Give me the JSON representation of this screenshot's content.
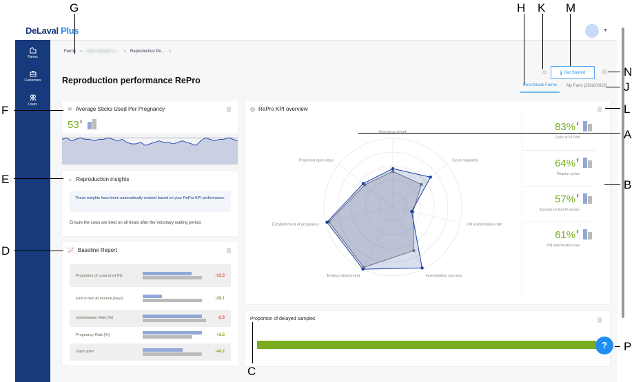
{
  "header": {
    "logo_main": "DeLaval",
    "logo_accent": "Plus"
  },
  "sidebar": {
    "items": [
      {
        "label": "Farms",
        "icon": "farm-icon"
      },
      {
        "label": "Customers",
        "icon": "briefcase-icon"
      },
      {
        "label": "Users",
        "icon": "users-icon"
      }
    ]
  },
  "breadcrumb": [
    "Farms",
    "New Sandahl G...",
    "Reproduction Pe..."
  ],
  "page": {
    "title": "Reproduction performance RePro"
  },
  "toolbar": {
    "get_started": "Get Started",
    "tabs": [
      "Benchmark Farms",
      "My Farm [25/10/2022]"
    ],
    "active_tab": 0
  },
  "sticks": {
    "title": "Average Sticks Used Per Pregnancy",
    "value": "53",
    "trend": "down",
    "sparkline": [
      52,
      53,
      51,
      52,
      53,
      52,
      52,
      51,
      52,
      52,
      53,
      52,
      51,
      52,
      50,
      49,
      49,
      50,
      48,
      49,
      50,
      51,
      50,
      50,
      49,
      50,
      51,
      50,
      49,
      48,
      51,
      53,
      52,
      51,
      52,
      52,
      53,
      52,
      51
    ]
  },
  "insights": {
    "title": "Reproduction insights",
    "info": "These insights have been automatically created based on your RePro KPI performance.",
    "tip": "Ensure the cows are bred on all heats after the Voluntary waiting period."
  },
  "baseline": {
    "title": "Baseline Report",
    "rows": [
      {
        "label": "Proportion of cows bred [%]",
        "farm": 0.71,
        "bench": 0.86,
        "delta": "-13.5",
        "color": "#e8453c"
      },
      {
        "label": "First to last AI interval [days]",
        "farm": 0.28,
        "bench": 0.86,
        "delta": "-28.1",
        "color": "#79ad1f"
      },
      {
        "label": "Insemination Rate [%]",
        "farm": 0.86,
        "bench": 0.92,
        "delta": "-2.6",
        "color": "#e8453c"
      },
      {
        "label": "Pregnancy Rate [%]",
        "farm": 0.86,
        "bench": 0.72,
        "delta": "+2.8",
        "color": "#79ad1f"
      },
      {
        "label": "Days open",
        "farm": 0.58,
        "bench": 0.86,
        "delta": "-44.2",
        "color": "#79ad1f"
      }
    ]
  },
  "kpi_overview": {
    "title": "RePro KPI overview",
    "tiles": [
      {
        "value": "83%",
        "trend": "down",
        "label": "Cyclic at 50 DIM"
      },
      {
        "value": "64%",
        "trend": "up",
        "label": "Regular cycles"
      },
      {
        "value": "57%",
        "trend": "up",
        "label": "Success on first AI service"
      },
      {
        "value": "61%",
        "trend": "up",
        "label": "HN Insemination rate"
      }
    ]
  },
  "chart_data": {
    "type": "radar",
    "axes": [
      "Anoestrus length",
      "Cycle regularity",
      "HN insemination rate",
      "Insemination success",
      "Embryo attachment",
      "Establishment of pregnancy",
      "Projected open days"
    ],
    "rlim": [
      0,
      100
    ],
    "series": [
      {
        "values": [
          56,
          70,
          28,
          98,
          100,
          98,
          55
        ],
        "color": "#1a3fa3"
      },
      {
        "values": [
          52,
          53,
          30,
          70,
          97,
          95,
          52
        ],
        "color": "#777777"
      }
    ]
  },
  "delayed": {
    "title": "Proportion of delayed samples",
    "fraction": 1.0,
    "color": "#79ad1f"
  },
  "callouts": [
    "A",
    "B",
    "C",
    "D",
    "E",
    "F",
    "G",
    "H",
    "J",
    "K",
    "L",
    "M",
    "N",
    "P"
  ],
  "colors": {
    "sidebar": "#173a7c",
    "accent": "#2a8ff0",
    "positive": "#79ad1f",
    "negative": "#e8453c"
  }
}
